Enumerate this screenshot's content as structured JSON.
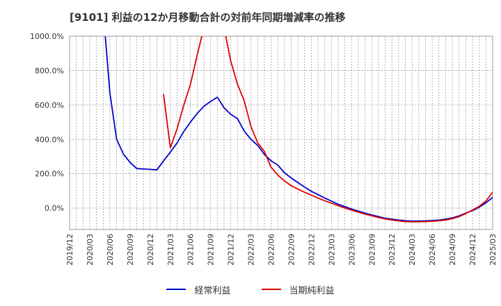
{
  "title": "[9101]  利益の12か月移動合計の対前年同期増減率の推移",
  "chart_data": {
    "type": "line",
    "title": "[9101]  利益の12か月移動合計の対前年同期増減率の推移",
    "xlabel": "",
    "ylabel": "",
    "x_ticks": [
      "2019/12",
      "2020/03",
      "2020/06",
      "2020/09",
      "2020/12",
      "2021/03",
      "2021/06",
      "2021/09",
      "2021/12",
      "2022/03",
      "2022/06",
      "2022/09",
      "2022/12",
      "2023/03",
      "2023/06",
      "2023/09",
      "2023/12",
      "2024/03",
      "2024/06",
      "2024/09",
      "2024/12",
      "2025/03"
    ],
    "y_ticks": [
      0,
      200,
      400,
      600,
      800,
      1000
    ],
    "y_tick_labels": [
      "0.0%",
      "200.0%",
      "400.0%",
      "600.0%",
      "800.0%",
      "1000.0%"
    ],
    "ylim": [
      -125,
      1000
    ],
    "grid": true,
    "legend_position": "bottom",
    "series": [
      {
        "name": "経常利益",
        "color": "#0000cc",
        "points": [
          [
            "2020/05",
            1150
          ],
          [
            "2020/06",
            670
          ],
          [
            "2020/07",
            400
          ],
          [
            "2020/08",
            315
          ],
          [
            "2020/09",
            265
          ],
          [
            "2020/10",
            230
          ],
          [
            "2020/11",
            227
          ],
          [
            "2020/12",
            225
          ],
          [
            "2021/01",
            222
          ],
          [
            "2021/02",
            275
          ],
          [
            "2021/03",
            325
          ],
          [
            "2021/04",
            378
          ],
          [
            "2021/05",
            445
          ],
          [
            "2021/06",
            500
          ],
          [
            "2021/07",
            550
          ],
          [
            "2021/08",
            592
          ],
          [
            "2021/09",
            620
          ],
          [
            "2021/10",
            645
          ],
          [
            "2021/11",
            583
          ],
          [
            "2021/12",
            545
          ],
          [
            "2022/01",
            520
          ],
          [
            "2022/02",
            448
          ],
          [
            "2022/03",
            400
          ],
          [
            "2022/04",
            365
          ],
          [
            "2022/05",
            312
          ],
          [
            "2022/06",
            275
          ],
          [
            "2022/07",
            250
          ],
          [
            "2022/08",
            205
          ],
          [
            "2022/09",
            175
          ],
          [
            "2022/10",
            148
          ],
          [
            "2022/11",
            122
          ],
          [
            "2022/12",
            97
          ],
          [
            "2023/01",
            78
          ],
          [
            "2023/02",
            58
          ],
          [
            "2023/03",
            40
          ],
          [
            "2023/04",
            22
          ],
          [
            "2023/05",
            8
          ],
          [
            "2023/06",
            -6
          ],
          [
            "2023/07",
            -18
          ],
          [
            "2023/08",
            -30
          ],
          [
            "2023/09",
            -40
          ],
          [
            "2023/10",
            -50
          ],
          [
            "2023/11",
            -60
          ],
          [
            "2023/12",
            -65
          ],
          [
            "2024/01",
            -70
          ],
          [
            "2024/02",
            -74
          ],
          [
            "2024/03",
            -76
          ],
          [
            "2024/04",
            -76
          ],
          [
            "2024/05",
            -75
          ],
          [
            "2024/06",
            -73
          ],
          [
            "2024/07",
            -70
          ],
          [
            "2024/08",
            -65
          ],
          [
            "2024/09",
            -57
          ],
          [
            "2024/10",
            -46
          ],
          [
            "2024/11",
            -30
          ],
          [
            "2024/12",
            -15
          ],
          [
            "2025/01",
            5
          ],
          [
            "2025/02",
            30
          ],
          [
            "2025/03",
            62
          ]
        ]
      },
      {
        "name": "当期純利益",
        "color": "#dd0000",
        "points": [
          [
            "2021/02",
            660
          ],
          [
            "2021/03",
            350
          ],
          [
            "2021/04",
            460
          ],
          [
            "2021/05",
            598
          ],
          [
            "2021/06",
            720
          ],
          [
            "2021/07",
            890
          ],
          [
            "2021/08",
            1050
          ],
          [
            "2021/11",
            1050
          ],
          [
            "2021/12",
            855
          ],
          [
            "2022/01",
            720
          ],
          [
            "2022/02",
            625
          ],
          [
            "2022/03",
            475
          ],
          [
            "2022/04",
            380
          ],
          [
            "2022/05",
            330
          ],
          [
            "2022/06",
            237
          ],
          [
            "2022/07",
            192
          ],
          [
            "2022/08",
            158
          ],
          [
            "2022/09",
            130
          ],
          [
            "2022/10",
            110
          ],
          [
            "2022/11",
            92
          ],
          [
            "2022/12",
            75
          ],
          [
            "2023/01",
            58
          ],
          [
            "2023/02",
            42
          ],
          [
            "2023/03",
            28
          ],
          [
            "2023/04",
            14
          ],
          [
            "2023/05",
            0
          ],
          [
            "2023/06",
            -12
          ],
          [
            "2023/07",
            -24
          ],
          [
            "2023/08",
            -35
          ],
          [
            "2023/09",
            -45
          ],
          [
            "2023/10",
            -55
          ],
          [
            "2023/11",
            -63
          ],
          [
            "2023/12",
            -70
          ],
          [
            "2024/01",
            -75
          ],
          [
            "2024/02",
            -79
          ],
          [
            "2024/03",
            -80
          ],
          [
            "2024/04",
            -80
          ],
          [
            "2024/05",
            -79
          ],
          [
            "2024/06",
            -77
          ],
          [
            "2024/07",
            -74
          ],
          [
            "2024/08",
            -70
          ],
          [
            "2024/09",
            -62
          ],
          [
            "2024/10",
            -50
          ],
          [
            "2024/11",
            -32
          ],
          [
            "2024/12",
            -12
          ],
          [
            "2025/01",
            10
          ],
          [
            "2025/02",
            40
          ],
          [
            "2025/03",
            92
          ]
        ]
      }
    ]
  }
}
